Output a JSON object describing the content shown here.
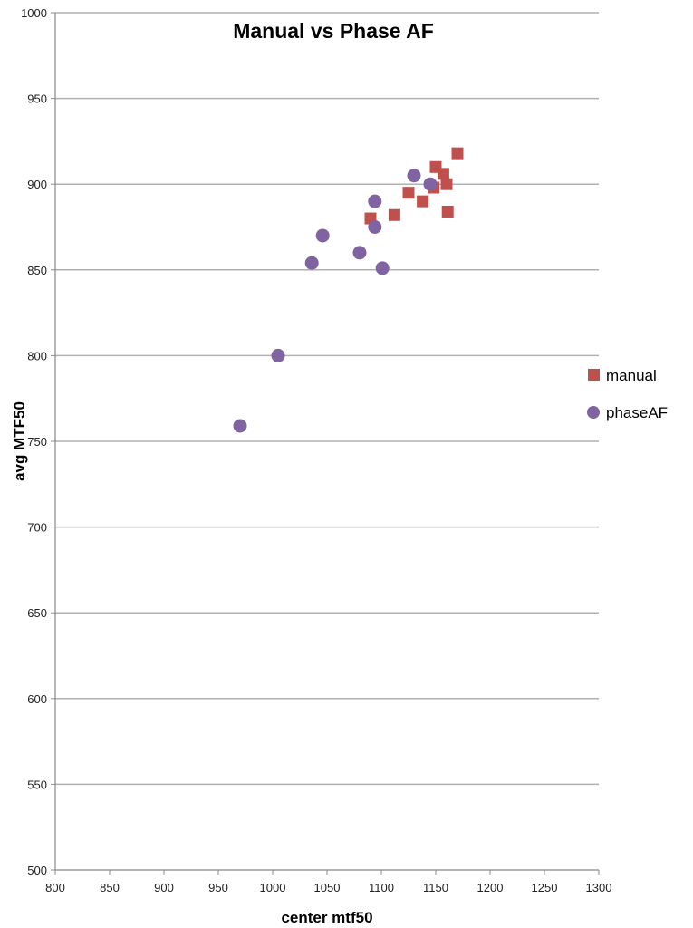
{
  "chart_data": {
    "type": "scatter",
    "title": "Manual vs Phase AF",
    "xlabel": "center mtf50",
    "ylabel": "avg MTF50",
    "xlim": [
      800,
      1300
    ],
    "ylim": [
      500,
      1000
    ],
    "xticks": [
      800,
      850,
      900,
      950,
      1000,
      1050,
      1100,
      1150,
      1200,
      1250,
      1300
    ],
    "yticks": [
      500,
      550,
      600,
      650,
      700,
      750,
      800,
      850,
      900,
      950,
      1000
    ],
    "grid": "horizontal",
    "legend_position": "right",
    "series": [
      {
        "name": "manual",
        "marker": "square",
        "color": "#c0504d",
        "points": [
          [
            1170,
            918
          ],
          [
            1150,
            910
          ],
          [
            1157,
            906
          ],
          [
            1160,
            900
          ],
          [
            1148,
            898
          ],
          [
            1125,
            895
          ],
          [
            1138,
            890
          ],
          [
            1161,
            884
          ],
          [
            1112,
            882
          ],
          [
            1090,
            880
          ]
        ]
      },
      {
        "name": "phaseAF",
        "marker": "circle",
        "color": "#8064a2",
        "points": [
          [
            1130,
            905
          ],
          [
            1145,
            900
          ],
          [
            1094,
            890
          ],
          [
            1094,
            875
          ],
          [
            1046,
            870
          ],
          [
            1080,
            860
          ],
          [
            1036,
            854
          ],
          [
            1101,
            851
          ],
          [
            1005,
            800
          ],
          [
            970,
            759
          ]
        ]
      }
    ]
  }
}
